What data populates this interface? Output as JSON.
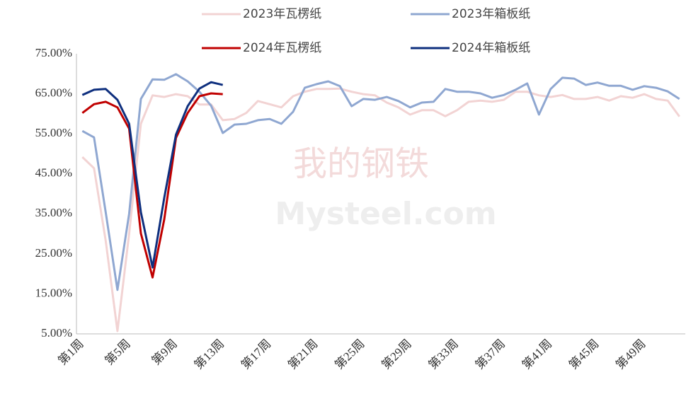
{
  "chart_data": {
    "type": "line",
    "watermark": "我的钢铁",
    "watermark_sub": "Mysteel.com",
    "categories": [
      "第1周",
      null,
      null,
      null,
      "第5周",
      null,
      null,
      null,
      "第9周",
      null,
      null,
      null,
      "第13周",
      null,
      null,
      null,
      "第17周",
      null,
      null,
      null,
      "第21周",
      null,
      null,
      null,
      "第25周",
      null,
      null,
      null,
      "第29周",
      null,
      null,
      null,
      "第33周",
      null,
      null,
      null,
      "第37周",
      null,
      null,
      null,
      "第41周",
      null,
      null,
      null,
      "第45周",
      null,
      null,
      null,
      "第49周",
      null,
      null,
      null
    ],
    "series": [
      {
        "name": "2023年瓦楞纸",
        "color": "#f2d3d3",
        "values": [
          49.2,
          46.4,
          28.3,
          5.7,
          30,
          57.5,
          64.6,
          64.2,
          64.9,
          64.4,
          62.3,
          62.3,
          58.4,
          58.7,
          60.2,
          63.2,
          62.4,
          61.6,
          64.4,
          65.5,
          66.2,
          66.2,
          66.3,
          65.5,
          64.9,
          64.6,
          62.8,
          61.6,
          59.8,
          60.9,
          60.9,
          59.4,
          60.9,
          63,
          63.3,
          63,
          63.5,
          65.5,
          65.5,
          64.6,
          64.2,
          64.7,
          63.7,
          63.7,
          64.2,
          63.3,
          64.4,
          64,
          64.9,
          63.7,
          63.3,
          59.3
        ]
      },
      {
        "name": "2023年箱板纸",
        "color": "#8fa7d1",
        "values": [
          55.7,
          54.1,
          35.4,
          16,
          35,
          63.7,
          68.6,
          68.5,
          69.9,
          68.1,
          65.5,
          62,
          55.2,
          57.3,
          57.5,
          58.4,
          58.7,
          57.5,
          60.5,
          66.5,
          67.4,
          68.1,
          66.9,
          61.9,
          63.7,
          63.5,
          64.2,
          63.2,
          61.6,
          62.8,
          63,
          66.2,
          65.5,
          65.5,
          65.1,
          64,
          64.7,
          66,
          67.6,
          59.8,
          66.2,
          69,
          68.8,
          67.2,
          67.8,
          67,
          67,
          66,
          66.9,
          66.5,
          65.6,
          63.7
        ]
      },
      {
        "name": "2024年瓦楞纸",
        "color": "#c00000",
        "values": [
          60.2,
          62.4,
          63,
          61.6,
          56.3,
          30.1,
          19.1,
          33.6,
          54,
          60.2,
          64.4,
          65.1,
          64.9,
          null,
          null,
          null,
          null,
          null,
          null,
          null,
          null,
          null,
          null,
          null,
          null,
          null,
          null,
          null,
          null,
          null,
          null,
          null,
          null,
          null,
          null,
          null,
          null,
          null,
          null,
          null,
          null,
          null,
          null,
          null,
          null,
          null,
          null,
          null,
          null,
          null,
          null,
          null
        ]
      },
      {
        "name": "2024年箱板纸",
        "color": "#0e2f7e",
        "values": [
          64.7,
          66,
          66.2,
          63.5,
          57.5,
          35.4,
          21.6,
          39,
          54.8,
          61.9,
          66.3,
          67.9,
          67.2,
          null,
          null,
          null,
          null,
          null,
          null,
          null,
          null,
          null,
          null,
          null,
          null,
          null,
          null,
          null,
          null,
          null,
          null,
          null,
          null,
          null,
          null,
          null,
          null,
          null,
          null,
          null,
          null,
          null,
          null,
          null,
          null,
          null,
          null,
          null,
          null,
          null,
          null,
          null
        ]
      }
    ],
    "ylim": [
      5,
      75
    ],
    "yticks": [
      {
        "value": 5,
        "label": "5.00%"
      },
      {
        "value": 15,
        "label": "15.00%"
      },
      {
        "value": 25,
        "label": "25.00%"
      },
      {
        "value": 35,
        "label": "35.00%"
      },
      {
        "value": 45,
        "label": "45.00%"
      },
      {
        "value": 55,
        "label": "55.00%"
      },
      {
        "value": 65,
        "label": "65.00%"
      },
      {
        "value": 75,
        "label": "75.00%"
      }
    ],
    "grid": false,
    "legend": "top"
  }
}
